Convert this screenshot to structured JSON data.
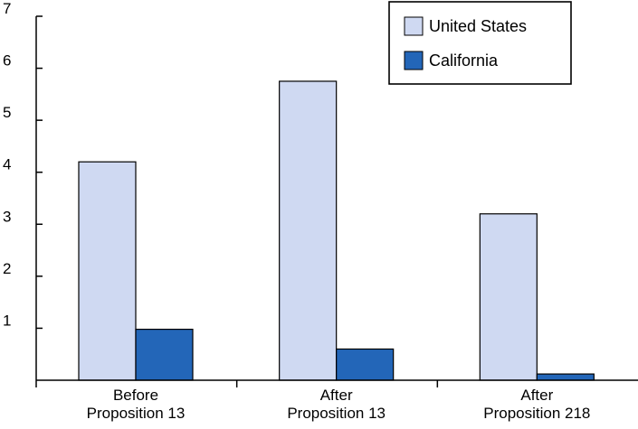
{
  "chart_data": {
    "type": "bar",
    "categories": [
      [
        "Before",
        "Proposition 13"
      ],
      [
        "After",
        "Proposition 13"
      ],
      [
        "After",
        "Proposition 218"
      ]
    ],
    "series": [
      {
        "name": "United States",
        "values": [
          4.2,
          5.75,
          3.2
        ],
        "color": "#cfd9f2"
      },
      {
        "name": "California",
        "values": [
          0.98,
          0.6,
          0.12
        ],
        "color": "#2366b8"
      }
    ],
    "title": "",
    "xlabel": "",
    "ylabel": "",
    "ylim": [
      0,
      7
    ],
    "yticks": [
      1,
      2,
      3,
      4,
      5,
      6,
      7
    ],
    "grid": false,
    "legend_position": "top-right"
  }
}
